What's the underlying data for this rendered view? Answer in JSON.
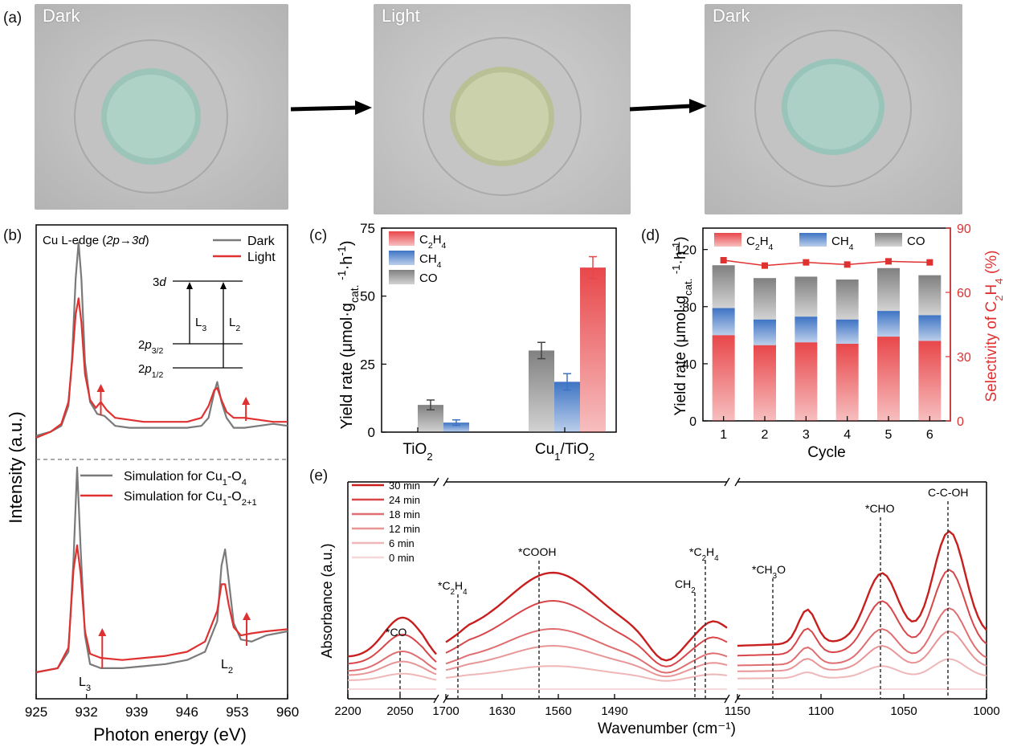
{
  "panels": {
    "a": {
      "letter": "(a)",
      "photos": [
        {
          "label": "Dark",
          "disk_color": "#a9cfc4",
          "ring_color": "#b7b7b7"
        },
        {
          "label": "Light",
          "disk_color": "#c8d0a8",
          "ring_color": "#bdbdbd"
        },
        {
          "label": "Dark",
          "disk_color": "#a4cbc2",
          "ring_color": "#b9b9b9"
        }
      ]
    },
    "b": {
      "letter": "(b)"
    },
    "c": {
      "letter": "(c)"
    },
    "d": {
      "letter": "(d)"
    },
    "e": {
      "letter": "(e)"
    }
  },
  "chart_data": [
    {
      "panel": "b",
      "type": "line",
      "title": "Cu L-edge (2p→3d)",
      "xlabel": "Photon energy (eV)",
      "ylabel": "Intensity (a.u.)",
      "xlim": [
        925,
        960
      ],
      "xticks": [
        "925",
        "932",
        "939",
        "946",
        "953",
        "960"
      ],
      "series": [
        {
          "name": "Dark",
          "color": "#7a7a7a",
          "points": [
            [
              925,
              0.03
            ],
            [
              927,
              0.05
            ],
            [
              928.5,
              0.08
            ],
            [
              929.5,
              0.18
            ],
            [
              930,
              0.42
            ],
            [
              930.5,
              0.82
            ],
            [
              930.9,
              1.0
            ],
            [
              931.3,
              0.82
            ],
            [
              931.8,
              0.4
            ],
            [
              932.5,
              0.2
            ],
            [
              933.5,
              0.14
            ],
            [
              934.5,
              0.13
            ],
            [
              936,
              0.08
            ],
            [
              938,
              0.07
            ],
            [
              940,
              0.07
            ],
            [
              943,
              0.07
            ],
            [
              946,
              0.07
            ],
            [
              948,
              0.08
            ],
            [
              949,
              0.12
            ],
            [
              949.8,
              0.25
            ],
            [
              950.2,
              0.3
            ],
            [
              950.8,
              0.2
            ],
            [
              951.5,
              0.12
            ],
            [
              952.5,
              0.07
            ],
            [
              954,
              0.07
            ],
            [
              956,
              0.08
            ],
            [
              958,
              0.09
            ],
            [
              960,
              0.08
            ]
          ]
        },
        {
          "name": "Light",
          "color": "#e03131",
          "points": [
            [
              925,
              0.02
            ],
            [
              927,
              0.05
            ],
            [
              928.5,
              0.09
            ],
            [
              929.5,
              0.2
            ],
            [
              930,
              0.4
            ],
            [
              930.5,
              0.64
            ],
            [
              930.9,
              0.72
            ],
            [
              931.3,
              0.6
            ],
            [
              931.8,
              0.34
            ],
            [
              932.5,
              0.21
            ],
            [
              933.3,
              0.17
            ],
            [
              934,
              0.2
            ],
            [
              934.8,
              0.16
            ],
            [
              936,
              0.12
            ],
            [
              938,
              0.11
            ],
            [
              940,
              0.1
            ],
            [
              943,
              0.1
            ],
            [
              946,
              0.1
            ],
            [
              948,
              0.12
            ],
            [
              949,
              0.18
            ],
            [
              949.8,
              0.26
            ],
            [
              950.2,
              0.27
            ],
            [
              950.8,
              0.21
            ],
            [
              951.5,
              0.15
            ],
            [
              952.5,
              0.12
            ],
            [
              954,
              0.12
            ],
            [
              956,
              0.11
            ],
            [
              958,
              0.1
            ],
            [
              960,
              0.1
            ]
          ]
        },
        {
          "name": "Simulation for Cu₁-O₄",
          "color": "#7a7a7a",
          "points": [
            [
              925,
              0.0
            ],
            [
              928,
              0.02
            ],
            [
              929.5,
              0.1
            ],
            [
              930.2,
              0.55
            ],
            [
              930.7,
              1.0
            ],
            [
              931.2,
              0.6
            ],
            [
              931.8,
              0.18
            ],
            [
              932.5,
              0.04
            ],
            [
              934,
              0.02
            ],
            [
              937,
              0.02
            ],
            [
              940,
              0.03
            ],
            [
              943,
              0.04
            ],
            [
              946,
              0.06
            ],
            [
              948.5,
              0.1
            ],
            [
              950.2,
              0.25
            ],
            [
              950.8,
              0.52
            ],
            [
              951.3,
              0.6
            ],
            [
              951.8,
              0.45
            ],
            [
              952.5,
              0.24
            ],
            [
              953.5,
              0.16
            ],
            [
              955,
              0.15
            ],
            [
              957,
              0.18
            ],
            [
              960,
              0.2
            ]
          ]
        },
        {
          "name": "Simulation for Cu₁-O₂₊₁",
          "color": "#e03131",
          "points": [
            [
              925,
              0.0
            ],
            [
              928,
              0.02
            ],
            [
              929.5,
              0.12
            ],
            [
              930.2,
              0.5
            ],
            [
              930.7,
              0.62
            ],
            [
              931.2,
              0.48
            ],
            [
              931.8,
              0.2
            ],
            [
              932.5,
              0.09
            ],
            [
              934,
              0.07
            ],
            [
              937,
              0.06
            ],
            [
              940,
              0.07
            ],
            [
              943,
              0.08
            ],
            [
              946,
              0.1
            ],
            [
              948.5,
              0.15
            ],
            [
              950.2,
              0.3
            ],
            [
              950.8,
              0.43
            ],
            [
              951.3,
              0.43
            ],
            [
              951.8,
              0.33
            ],
            [
              952.5,
              0.22
            ],
            [
              953.5,
              0.18
            ],
            [
              955,
              0.19
            ],
            [
              957,
              0.2
            ],
            [
              960,
              0.21
            ]
          ]
        }
      ],
      "annotations": {
        "levels": [
          "3d",
          "2p3/2",
          "2p1/2"
        ],
        "transitions": [
          "L3",
          "L2"
        ],
        "peak_labels": [
          "L3",
          "L2"
        ]
      }
    },
    {
      "panel": "c",
      "type": "bar",
      "xlabel": "",
      "ylabel": "Yield rate (μmol·gcat.-1·h-1)",
      "ylim": [
        0,
        75
      ],
      "yticks": [
        "0",
        "25",
        "50",
        "75"
      ],
      "categories": [
        "TiO₂",
        "Cu₁/TiO₂"
      ],
      "series": [
        {
          "name": "C₂H₄",
          "color": "#e8474a",
          "values": [
            0,
            60.5
          ],
          "errors": [
            0,
            4
          ]
        },
        {
          "name": "CH₄",
          "color": "#3e74c4",
          "values": [
            3.5,
            18.5
          ],
          "errors": [
            1,
            3
          ]
        },
        {
          "name": "CO",
          "color": "#808080",
          "values": [
            10,
            30
          ],
          "errors": [
            1.8,
            3
          ]
        }
      ]
    },
    {
      "panel": "d",
      "type": "bar",
      "xlabel": "Cycle",
      "ylabel": "Yield rate (μmol·gcat.-1·h-1)",
      "ylabel_right": "Selectivity of C₂H₄ (%)",
      "ylim": [
        0,
        135
      ],
      "ylim_right": [
        0,
        90
      ],
      "yticks": [
        "0",
        "40",
        "80",
        "120"
      ],
      "yticks_right": [
        "0",
        "30",
        "60",
        "90"
      ],
      "categories": [
        "1",
        "2",
        "3",
        "4",
        "5",
        "6"
      ],
      "stacked": true,
      "series": [
        {
          "name": "C₂H₄",
          "color": "#e8474a",
          "values": [
            60,
            53,
            55,
            54,
            59,
            56
          ]
        },
        {
          "name": "CH₄",
          "color": "#3e74c4",
          "values": [
            19,
            18,
            18,
            17,
            18,
            18
          ]
        },
        {
          "name": "CO",
          "color": "#808080",
          "values": [
            30,
            29,
            28,
            28,
            30,
            28
          ]
        }
      ],
      "selectivity": [
        75,
        72.5,
        74,
        73,
        74.5,
        74
      ]
    },
    {
      "panel": "e",
      "type": "line",
      "xlabel": "Wavenumber (cm⁻¹)",
      "ylabel": "Absorbance (a.u.)",
      "xticks": [
        "2200",
        "2050",
        "1700",
        "1630",
        "1560",
        "1490",
        "1150",
        "1100",
        "1050",
        "1000"
      ],
      "legend": [
        "30 min",
        "24 min",
        "18 min",
        "12 min",
        "6 min",
        "0 min"
      ],
      "legend_colors": [
        "#c81e1e",
        "#d8464a",
        "#e06e70",
        "#e89596",
        "#efb7b8",
        "#f6d8d8"
      ],
      "peak_labels": [
        "*CO",
        "*C₂H₄",
        "*COOH",
        "CH₂",
        "*C₂H₄",
        "*CH₃O",
        "*CHO",
        "C-C-OH"
      ],
      "series_scale": [
        1.0,
        0.75,
        0.5,
        0.35,
        0.17,
        0.0
      ]
    }
  ]
}
